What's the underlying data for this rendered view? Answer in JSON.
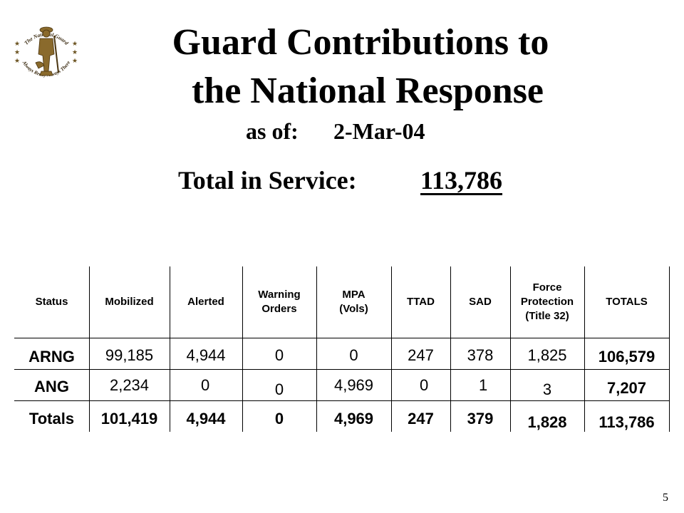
{
  "logo": {
    "icon": "national-guard-minuteman-seal-icon",
    "top_text": "The National Guard",
    "bottom_text": "Always Ready Always There"
  },
  "title": {
    "line1": "Guard Contributions to",
    "line2": "the National Response"
  },
  "as_of": {
    "label": "as of:",
    "date": "2-Mar-04"
  },
  "total_in_service": {
    "label": "Total in Service:",
    "value": "113,786"
  },
  "table": {
    "headers": {
      "status": "Status",
      "mobilized": "Mobilized",
      "alerted": "Alerted",
      "warning_1": "Warning",
      "warning_2": "Orders",
      "mpa_1": "MPA",
      "mpa_2": "(Vols)",
      "ttad": "TTAD",
      "sad": "SAD",
      "fp_1": "Force",
      "fp_2": "Protection",
      "fp_3": "(Title 32)",
      "totals": "TOTALS"
    },
    "arng": {
      "status": "ARNG",
      "mobilized": "99,185",
      "alerted": "4,944",
      "warning": "0",
      "mpa": "0",
      "ttad": "247",
      "sad": "378",
      "fp": "1,825",
      "total": "106,579"
    },
    "ang": {
      "status": "ANG",
      "mobilized": "2,234",
      "alerted": "0",
      "warning": "0",
      "mpa": "4,969",
      "ttad": "0",
      "sad": "1",
      "fp": "3",
      "total": "7,207"
    },
    "totals": {
      "status": "Totals",
      "mobilized": "101,419",
      "alerted": "4,944",
      "warning": "0",
      "mpa": "4,969",
      "ttad": "247",
      "sad": "379",
      "fp": "1,828",
      "total": "113,786"
    }
  },
  "page_number": "5"
}
